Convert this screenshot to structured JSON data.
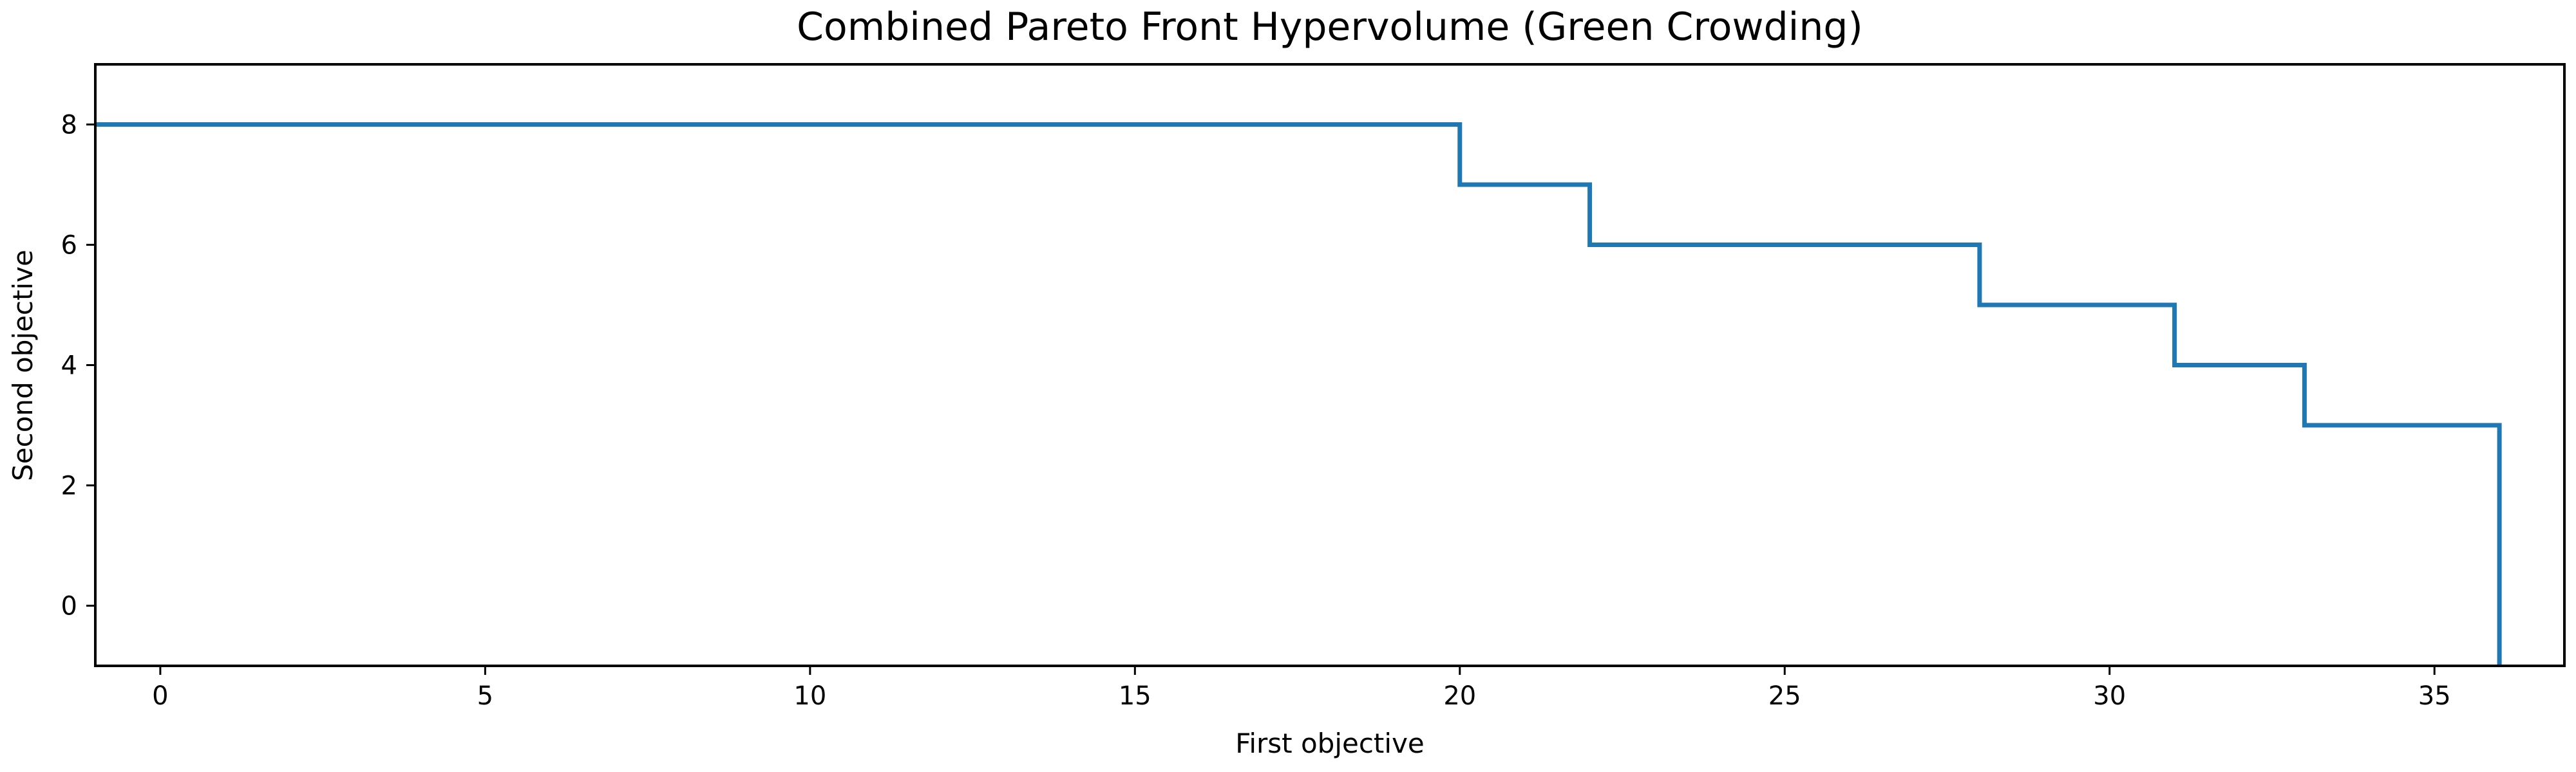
{
  "chart_data": {
    "type": "line",
    "title": "Combined Pareto Front Hypervolume (Green Crowding)",
    "xlabel": "First objective",
    "ylabel": "Second objective",
    "xlim": [
      -1,
      37
    ],
    "ylim": [
      -1,
      9
    ],
    "x_ticks": [
      0,
      5,
      10,
      15,
      20,
      25,
      30,
      35
    ],
    "y_ticks": [
      0,
      2,
      4,
      6,
      8
    ],
    "grid": false,
    "line_color": "#1f77b4",
    "series": [
      {
        "name": "",
        "step": true,
        "points": [
          [
            -1,
            8
          ],
          [
            20,
            8
          ],
          [
            20,
            7
          ],
          [
            22,
            7
          ],
          [
            22,
            6
          ],
          [
            28,
            6
          ],
          [
            28,
            5
          ],
          [
            31,
            5
          ],
          [
            31,
            4
          ],
          [
            33,
            4
          ],
          [
            33,
            3
          ],
          [
            36,
            3
          ],
          [
            36,
            -1
          ]
        ]
      }
    ]
  }
}
